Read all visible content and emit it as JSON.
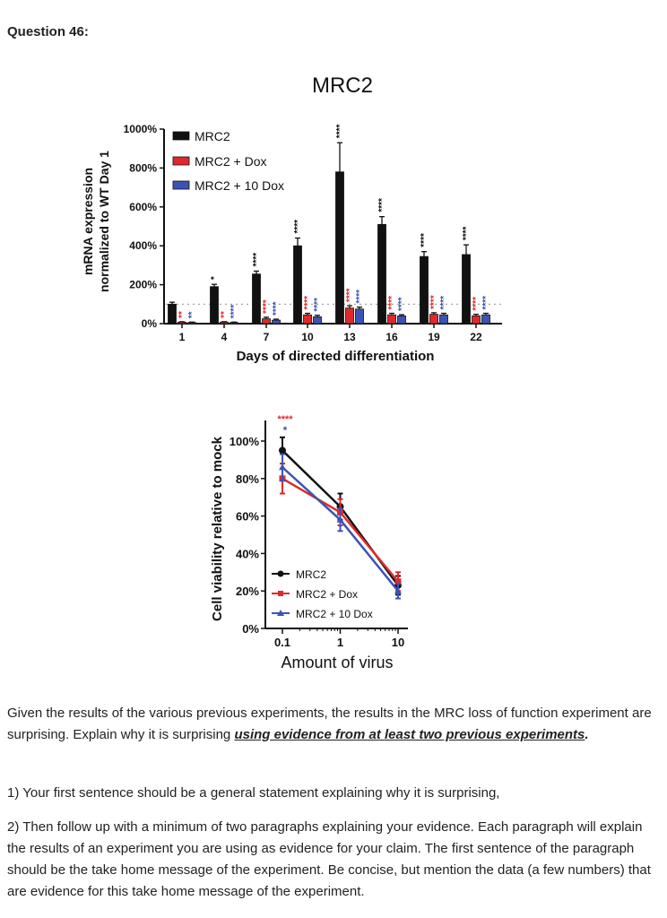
{
  "question_title": "Question 46:",
  "colors": {
    "black": "#111111",
    "red": "#e0292b",
    "blue": "#3b54b4"
  },
  "chart_data": [
    {
      "type": "bar",
      "title": "MRC2",
      "xlabel": "Days of directed differentiation",
      "ylabel_lines": [
        "mRNA expression",
        "normalized to WT Day 1"
      ],
      "ytick_labels": [
        "0%",
        "200%",
        "400%",
        "600%",
        "800%",
        "1000%"
      ],
      "yticks": [
        0,
        200,
        400,
        600,
        800,
        1000
      ],
      "ylim": [
        0,
        1000
      ],
      "categories": [
        "1",
        "4",
        "7",
        "10",
        "13",
        "16",
        "19",
        "22"
      ],
      "legend_position": "top-left",
      "reference_line": 100,
      "series": [
        {
          "name": "MRC2",
          "color": "#111111",
          "values": [
            100,
            190,
            255,
            400,
            780,
            510,
            345,
            355
          ],
          "errors": [
            10,
            12,
            15,
            40,
            150,
            40,
            25,
            50
          ],
          "stars": [
            "",
            "*",
            "****",
            "****",
            "****",
            "****",
            "****",
            "****"
          ]
        },
        {
          "name": "MRC2 + Dox",
          "color": "#e0292b",
          "values": [
            8,
            8,
            25,
            45,
            80,
            45,
            48,
            40
          ],
          "errors": [
            2,
            2,
            8,
            8,
            12,
            8,
            8,
            8
          ],
          "stars": [
            "**",
            "**",
            "****",
            "****",
            "****",
            "****",
            "****",
            "****"
          ]
        },
        {
          "name": "MRC2 + 10 Dox",
          "color": "#3b54b4",
          "values": [
            6,
            6,
            18,
            35,
            75,
            40,
            45,
            45
          ],
          "errors": [
            2,
            2,
            5,
            8,
            10,
            6,
            8,
            8
          ],
          "stars": [
            "**",
            "****",
            "****",
            "****",
            "****",
            "****",
            "****",
            "****"
          ]
        }
      ]
    },
    {
      "type": "line",
      "xlabel": "Amount of virus",
      "ylabel": "Cell viability relative to mock",
      "x_scale": "log",
      "x": [
        0.1,
        1,
        10
      ],
      "xtick_labels": [
        "0.1",
        "1",
        "10"
      ],
      "ytick_labels": [
        "0%",
        "20%",
        "40%",
        "60%",
        "80%",
        "100%"
      ],
      "yticks": [
        0,
        20,
        40,
        60,
        80,
        100
      ],
      "ylim": [
        0,
        110
      ],
      "legend_position": "bottom-left",
      "annotation_stars": [
        "****",
        "*"
      ],
      "series": [
        {
          "name": "MRC2",
          "color": "#111111",
          "marker": "circle",
          "values": [
            95,
            65,
            23
          ],
          "errors": [
            7,
            7,
            5
          ]
        },
        {
          "name": "MRC2 + Dox",
          "color": "#e0292b",
          "marker": "square",
          "values": [
            80,
            62,
            25
          ],
          "errors": [
            8,
            7,
            5
          ]
        },
        {
          "name": "MRC2 + 10 Dox",
          "color": "#3b54b4",
          "marker": "triangle",
          "values": [
            86,
            58,
            20
          ],
          "errors": [
            7,
            6,
            4
          ]
        }
      ]
    }
  ],
  "text": {
    "p1_a": "Given the results of the various previous experiments, the results in the MRC loss of function experiment are surprising. Explain why it is surprising ",
    "p1_b": "using evidence from at least two previous experiments",
    "p1_c": ".",
    "p2": "1) Your first sentence should be a general statement explaining why it is surprising,",
    "p3": "2) Then follow up with a minimum of two paragraphs explaining your evidence. Each paragraph will explain the results of an experiment you are using as evidence for your claim. The first sentence of the paragraph should be the take home message of the experiment. Be concise, but mention the data (a few numbers) that are evidence for this take home message of the experiment."
  }
}
